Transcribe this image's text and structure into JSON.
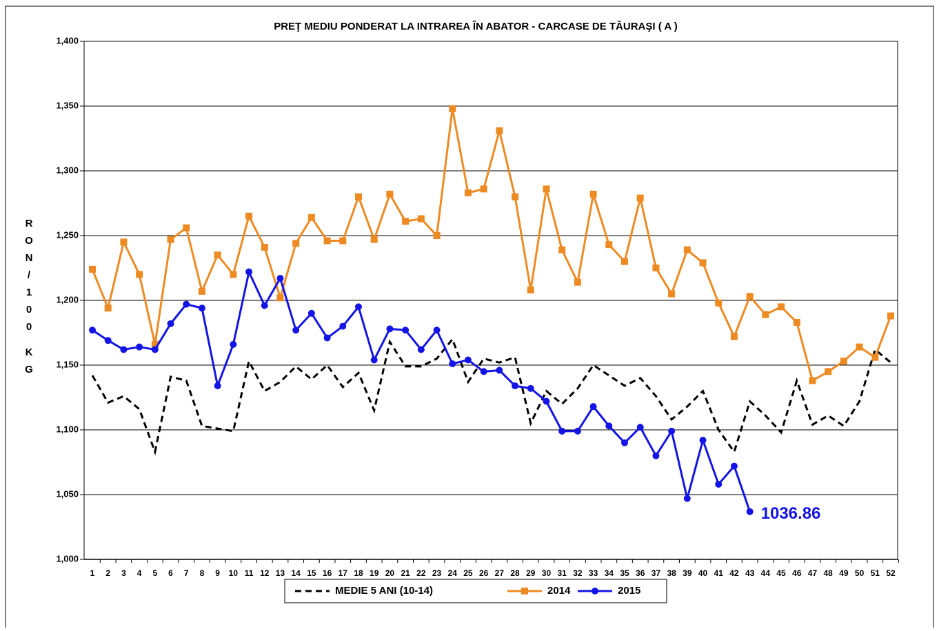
{
  "chart_data": {
    "type": "line",
    "title": "PREŢ MEDIU PONDERAT LA INTRAREA ÎN ABATOR - CARCASE DE TĂURAŞI ( A )",
    "y_label": "RON/100 KG",
    "categories": [
      1,
      2,
      3,
      4,
      5,
      6,
      7,
      8,
      9,
      10,
      11,
      12,
      13,
      14,
      15,
      16,
      17,
      18,
      19,
      20,
      21,
      22,
      23,
      24,
      25,
      26,
      27,
      28,
      29,
      30,
      31,
      32,
      33,
      34,
      35,
      36,
      37,
      38,
      39,
      40,
      41,
      42,
      43,
      44,
      45,
      46,
      47,
      48,
      49,
      50,
      51,
      52
    ],
    "ylim": [
      1000,
      1400
    ],
    "yticks": [
      {
        "value": 1000,
        "label": "1,000"
      },
      {
        "value": 1050,
        "label": "1,050"
      },
      {
        "value": 1100,
        "label": "1,100"
      },
      {
        "value": 1150,
        "label": "1,150"
      },
      {
        "value": 1200,
        "label": "1,200"
      },
      {
        "value": 1250,
        "label": "1,250"
      },
      {
        "value": 1300,
        "label": "1,300"
      },
      {
        "value": 1350,
        "label": "1,350"
      },
      {
        "value": 1400,
        "label": "1,400"
      }
    ],
    "grid": true,
    "legend": "bottom",
    "series": [
      {
        "name": "MEDIE 5 ANI (10-14)",
        "color": "#000000",
        "dashed": true,
        "marker": "none",
        "values": [
          1142,
          1121,
          1126,
          1116,
          1083,
          1141,
          1138,
          1103,
          1101,
          1099,
          1153,
          1130,
          1137,
          1149,
          1139,
          1150,
          1133,
          1144,
          1115,
          1168,
          1149,
          1149,
          1155,
          1170,
          1137,
          1155,
          1152,
          1156,
          1105,
          1130,
          1120,
          1132,
          1150,
          1142,
          1134,
          1140,
          1126,
          1108,
          1118,
          1130,
          1100,
          1083,
          1122,
          1111,
          1098,
          1138,
          1104,
          1111,
          1103,
          1122,
          1162,
          1152
        ]
      },
      {
        "name": "2014",
        "color": "#EE8A22",
        "dashed": false,
        "marker": "square",
        "values": [
          1224,
          1194,
          1245,
          1220,
          1166,
          1247,
          1256,
          1207,
          1235,
          1220,
          1265,
          1241,
          1202,
          1244,
          1264,
          1246,
          1246,
          1280,
          1247,
          1282,
          1261,
          1263,
          1250,
          1348,
          1283,
          1286,
          1331,
          1280,
          1208,
          1286,
          1239,
          1214,
          1282,
          1243,
          1230,
          1279,
          1225,
          1205,
          1239,
          1229,
          1198,
          1172,
          1203,
          1189,
          1195,
          1183,
          1138,
          1145,
          1153,
          1164,
          1156,
          1188
        ]
      },
      {
        "name": "2015",
        "color": "#1414E6",
        "dashed": false,
        "marker": "circle",
        "values": [
          1177,
          1169,
          1162,
          1164,
          1162,
          1182,
          1197,
          1194,
          1134,
          1166,
          1222,
          1196,
          1217,
          1177,
          1190,
          1171,
          1180,
          1195,
          1154,
          1178,
          1177,
          1162,
          1177,
          1151,
          1154,
          1145,
          1146,
          1134,
          1132,
          1122,
          1099,
          1099,
          1118,
          1103,
          1090,
          1102,
          1080,
          1099,
          1047,
          1092,
          1058,
          1072,
          1036.86,
          null,
          null,
          null,
          null,
          null,
          null,
          null,
          null,
          null
        ]
      }
    ],
    "last_point_label_series": 2
  }
}
